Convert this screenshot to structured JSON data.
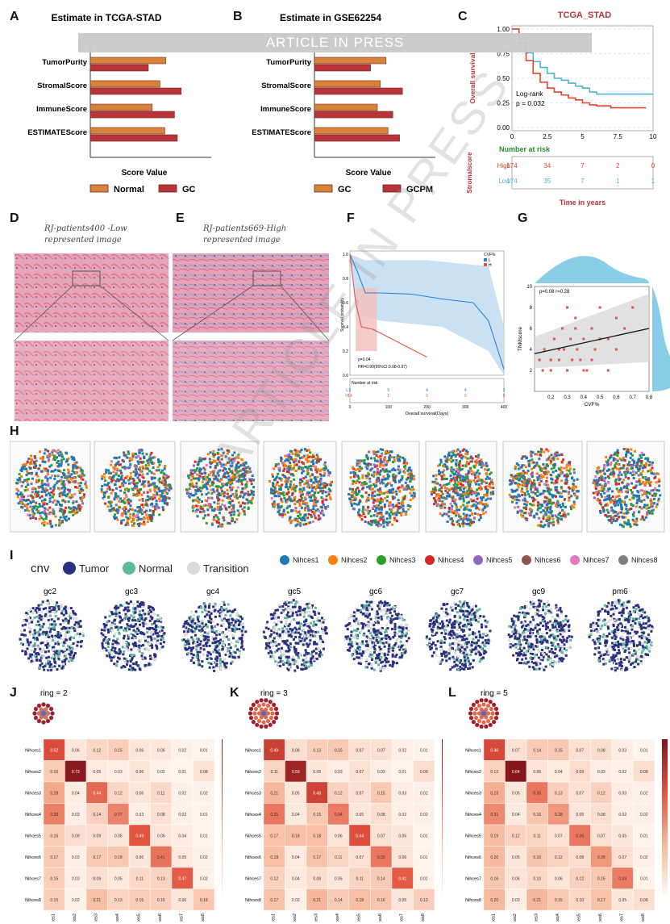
{
  "banner": "ARTICLE IN PRESS",
  "watermark": "ARTICLE IN PRESS",
  "panels": {
    "A": "A",
    "B": "B",
    "C": "C",
    "D": "D",
    "E": "E",
    "F": "F",
    "G": "G",
    "H": "H",
    "I": "I",
    "J": "J",
    "K": "K",
    "L": "L"
  },
  "colors": {
    "orange": "#d9823a",
    "red": "#b8333a",
    "blue": "#4fb3d6",
    "km_red": "#e0452c"
  },
  "chart_data": [
    {
      "id": "A",
      "type": "bar",
      "title": "Estimate in TCGA-STAD",
      "xlabel": "Score Value",
      "categories": [
        "TumorPurity",
        "StromalScore",
        "ImmuneScore",
        "ESTIMATEScore"
      ],
      "series": [
        {
          "name": "Normal",
          "values": [
            0.78,
            0.72,
            0.64,
            0.77
          ]
        },
        {
          "name": "GC",
          "values": [
            0.6,
            0.94,
            0.87,
            0.9
          ]
        }
      ],
      "ylim": [
        0,
        1
      ]
    },
    {
      "id": "B",
      "type": "bar",
      "title": "Estimate in GSE62254",
      "xlabel": "Score Value",
      "categories": [
        "TumorPurity",
        "StromalScore",
        "ImmuneScore",
        "ESTIMATEScore"
      ],
      "series": [
        {
          "name": "GC",
          "values": [
            0.74,
            0.68,
            0.65,
            0.76
          ]
        },
        {
          "name": "GCPM",
          "values": [
            0.58,
            0.91,
            0.81,
            0.88
          ]
        }
      ],
      "ylim": [
        0,
        1
      ]
    },
    {
      "id": "C",
      "type": "line",
      "title": "TCGA_STAD",
      "ylabel": "Overall survival",
      "xlabel": "Time in years",
      "xlim": [
        0,
        10
      ],
      "ylim": [
        0,
        1
      ],
      "xticks": [
        "0",
        "2.5",
        "5",
        "7.5",
        "10"
      ],
      "yticks": [
        "0.00",
        "0.25",
        "0.50",
        "0.75",
        "1.00"
      ],
      "annotation": [
        "Log-rank",
        "p = 0.032"
      ],
      "series": [
        {
          "name": "Low",
          "x": [
            0,
            0.5,
            1,
            1.5,
            2,
            2.5,
            3,
            3.5,
            4,
            4.5,
            5,
            5.5,
            6,
            7,
            8,
            9,
            10
          ],
          "y": [
            1,
            0.9,
            0.76,
            0.67,
            0.61,
            0.55,
            0.5,
            0.48,
            0.45,
            0.42,
            0.4,
            0.36,
            0.34,
            0.34,
            0.34,
            0.34,
            0.34
          ]
        },
        {
          "name": "High",
          "x": [
            0,
            0.5,
            1,
            1.5,
            2,
            2.5,
            3,
            3.5,
            4,
            4.5,
            5,
            5.5,
            6,
            7,
            8,
            9,
            9.5
          ],
          "y": [
            1,
            0.86,
            0.68,
            0.55,
            0.46,
            0.4,
            0.36,
            0.33,
            0.3,
            0.28,
            0.25,
            0.23,
            0.22,
            0.2,
            0.2,
            0.2,
            0.2
          ]
        }
      ],
      "risk_table": {
        "title": "Number at risk",
        "ylabel": "Stromalscore",
        "rows": [
          {
            "label": "High",
            "values": [
              "174",
              "34",
              "7",
              "2",
              "0"
            ]
          },
          {
            "label": "Low",
            "values": [
              "174",
              "35",
              "7",
              "1",
              "1"
            ]
          }
        ]
      }
    },
    {
      "id": "F",
      "type": "line",
      "ylabel": "Survival probability",
      "xlabel": "Overall survival(Days)",
      "xlim": [
        0,
        400
      ],
      "ylim": [
        0,
        1
      ],
      "xticks": [
        "0",
        "100",
        "200",
        "300",
        "400"
      ],
      "yticks": [
        "0.0",
        "0.2",
        "0.4",
        "0.6",
        "0.8",
        "1.0"
      ],
      "legend_title": "CVF%",
      "legend": [
        "L",
        "H"
      ],
      "annotation": [
        "p=0.04",
        "HR=0.90(95%CI:0.68-0.97)"
      ],
      "series": [
        {
          "name": "L",
          "x": [
            0,
            20,
            40,
            80,
            160,
            240,
            320,
            360,
            400
          ],
          "y": [
            1,
            0.85,
            0.68,
            0.68,
            0.67,
            0.63,
            0.6,
            0.45,
            0.05
          ]
        },
        {
          "name": "H",
          "x": [
            0,
            15,
            30,
            60,
            200
          ],
          "y": [
            1,
            0.6,
            0.4,
            0.38,
            0.15
          ]
        }
      ],
      "risk_table": {
        "title": "Number at risk",
        "rows": [
          {
            "label": "L",
            "values": [
              "5",
              "5",
              "4",
              "4",
              "3"
            ]
          },
          {
            "label": "H",
            "values": [
              "14",
              "1",
              "0",
              "0",
              "0"
            ]
          }
        ]
      }
    },
    {
      "id": "G",
      "type": "scatter",
      "xlabel": "CVF%",
      "ylabel": "TNMscore",
      "annotation": "p=0.08 r=0.28",
      "xlim": [
        0.1,
        0.8
      ],
      "ylim": [
        0,
        10
      ],
      "xticks": [
        "0.2",
        "0.3",
        "0.4",
        "0.5",
        "0.6",
        "0.7",
        "0.8"
      ],
      "yticks": [
        "2",
        "4",
        "6",
        "8",
        "10"
      ],
      "x": [
        0.13,
        0.16,
        0.2,
        0.22,
        0.25,
        0.27,
        0.28,
        0.3,
        0.32,
        0.33,
        0.35,
        0.36,
        0.38,
        0.4,
        0.42,
        0.45,
        0.47,
        0.5,
        0.55,
        0.6,
        0.65,
        0.2,
        0.3,
        0.4,
        0.5,
        0.6,
        0.7,
        0.15,
        0.35,
        0.45,
        0.25,
        0.55
      ],
      "y": [
        3,
        4,
        2,
        5,
        3,
        6,
        4,
        2,
        5,
        3,
        7,
        4,
        3,
        5,
        2,
        6,
        4,
        8,
        5,
        4,
        6,
        3,
        8,
        2,
        5,
        7,
        8,
        2,
        6,
        3,
        4,
        2
      ]
    }
  ],
  "D": {
    "caption": [
      "RJ-patients400 -Low",
      "represented image"
    ]
  },
  "E": {
    "caption": [
      "RJ-patients669-High",
      "represented image"
    ]
  },
  "I": {
    "cnv_label": "cnv",
    "cnv_legend": [
      "Tumor",
      "Normal",
      "Transition"
    ],
    "niche_legend": [
      "Nihces1",
      "Nihces2",
      "Nihces3",
      "Nihces4",
      "Nihces5",
      "Nihces6",
      "Nihces7",
      "Nihces8"
    ],
    "niche_colors": [
      "#1f77b4",
      "#ff7f0e",
      "#2ca02c",
      "#d62728",
      "#9467bd",
      "#8c564b",
      "#e377c2",
      "#7f7f7f"
    ],
    "cnv_colors": [
      "#2b2f7e",
      "#5bb89a",
      "#d9d9d9"
    ],
    "samples": [
      "gc2",
      "gc3",
      "gc4",
      "gc5",
      "gc6",
      "gc7",
      "gc9",
      "pm6"
    ]
  },
  "heatmaps": [
    {
      "id": "J",
      "title": "ring = 2",
      "labels": [
        "Nihces1",
        "Nihces2",
        "Nihces3",
        "Nihces4",
        "Nihces5",
        "Nihces6",
        "Nihces7",
        "Nihces8"
      ],
      "scale": [
        "0.1",
        "0.2",
        "0.3",
        "0.4",
        "0.5",
        "0.6",
        "0.7"
      ],
      "vmax": 0.75,
      "matrix": [
        [
          0.52,
          0.06,
          0.12,
          0.15,
          0.06,
          0.06,
          0.02,
          0.01
        ],
        [
          0.16,
          0.73,
          0.05,
          0.03,
          0.06,
          0.02,
          0.01,
          0.08
        ],
        [
          0.28,
          0.04,
          0.44,
          0.12,
          0.06,
          0.11,
          0.02,
          0.02
        ],
        [
          0.38,
          0.03,
          0.14,
          0.37,
          0.03,
          0.08,
          0.02,
          0.01
        ],
        [
          0.16,
          0.09,
          0.09,
          0.06,
          0.49,
          0.06,
          0.04,
          0.01
        ],
        [
          0.17,
          0.03,
          0.17,
          0.18,
          0.06,
          0.41,
          0.05,
          0.02
        ],
        [
          0.15,
          0.03,
          0.09,
          0.05,
          0.11,
          0.13,
          0.47,
          0.02
        ],
        [
          0.15,
          0.02,
          0.21,
          0.13,
          0.15,
          0.15,
          0.06,
          0.18
        ]
      ]
    },
    {
      "id": "K",
      "title": "ring = 3",
      "labels": [
        "Nihces1",
        "Nihces2",
        "Nihces3",
        "Nihces4",
        "Nihces5",
        "Nihces6",
        "Nihces7",
        "Nihces8"
      ],
      "scale": [
        "0.1",
        "0.2",
        "0.3",
        "0.4",
        "0.5",
        "0.6"
      ],
      "vmax": 0.65,
      "matrix": [
        [
          0.49,
          0.08,
          0.13,
          0.15,
          0.07,
          0.07,
          0.02,
          0.01
        ],
        [
          0.11,
          0.59,
          0.05,
          0.03,
          0.07,
          0.03,
          0.01,
          0.09
        ],
        [
          0.21,
          0.05,
          0.48,
          0.12,
          0.07,
          0.15,
          0.03,
          0.02
        ],
        [
          0.35,
          0.04,
          0.15,
          0.34,
          0.05,
          0.08,
          0.02,
          0.02
        ],
        [
          0.17,
          0.18,
          0.18,
          0.06,
          0.44,
          0.07,
          0.05,
          0.01
        ],
        [
          0.18,
          0.04,
          0.17,
          0.11,
          0.07,
          0.35,
          0.06,
          0.01
        ],
        [
          0.12,
          0.04,
          0.08,
          0.05,
          0.11,
          0.14,
          0.41,
          0.01
        ],
        [
          0.17,
          0.02,
          0.21,
          0.14,
          0.18,
          0.16,
          0.05,
          0.13
        ]
      ]
    },
    {
      "id": "L",
      "title": "ring = 5",
      "labels": [
        "Nihces1",
        "Nihces2",
        "Nihces3",
        "Nihces4",
        "Nihces5",
        "Nihces6",
        "Nihces7",
        "Nihces8"
      ],
      "scale": [
        "0.1",
        "0.2",
        "0.3",
        "0.4",
        "0.5",
        "0.6"
      ],
      "vmax": 0.65,
      "matrix": [
        [
          0.46,
          0.07,
          0.14,
          0.15,
          0.07,
          0.08,
          0.03,
          0.01
        ],
        [
          0.12,
          0.64,
          0.06,
          0.04,
          0.09,
          0.03,
          0.02,
          0.08
        ],
        [
          0.23,
          0.05,
          0.35,
          0.13,
          0.07,
          0.12,
          0.03,
          0.02
        ],
        [
          0.31,
          0.04,
          0.16,
          0.28,
          0.05,
          0.08,
          0.02,
          0.02
        ],
        [
          0.19,
          0.12,
          0.11,
          0.07,
          0.35,
          0.07,
          0.05,
          0.01
        ],
        [
          0.2,
          0.05,
          0.16,
          0.12,
          0.08,
          0.28,
          0.07,
          0.02
        ],
        [
          0.16,
          0.06,
          0.1,
          0.06,
          0.12,
          0.15,
          0.34,
          0.01
        ],
        [
          0.2,
          0.03,
          0.21,
          0.15,
          0.1,
          0.17,
          0.05,
          0.08
        ]
      ]
    }
  ]
}
